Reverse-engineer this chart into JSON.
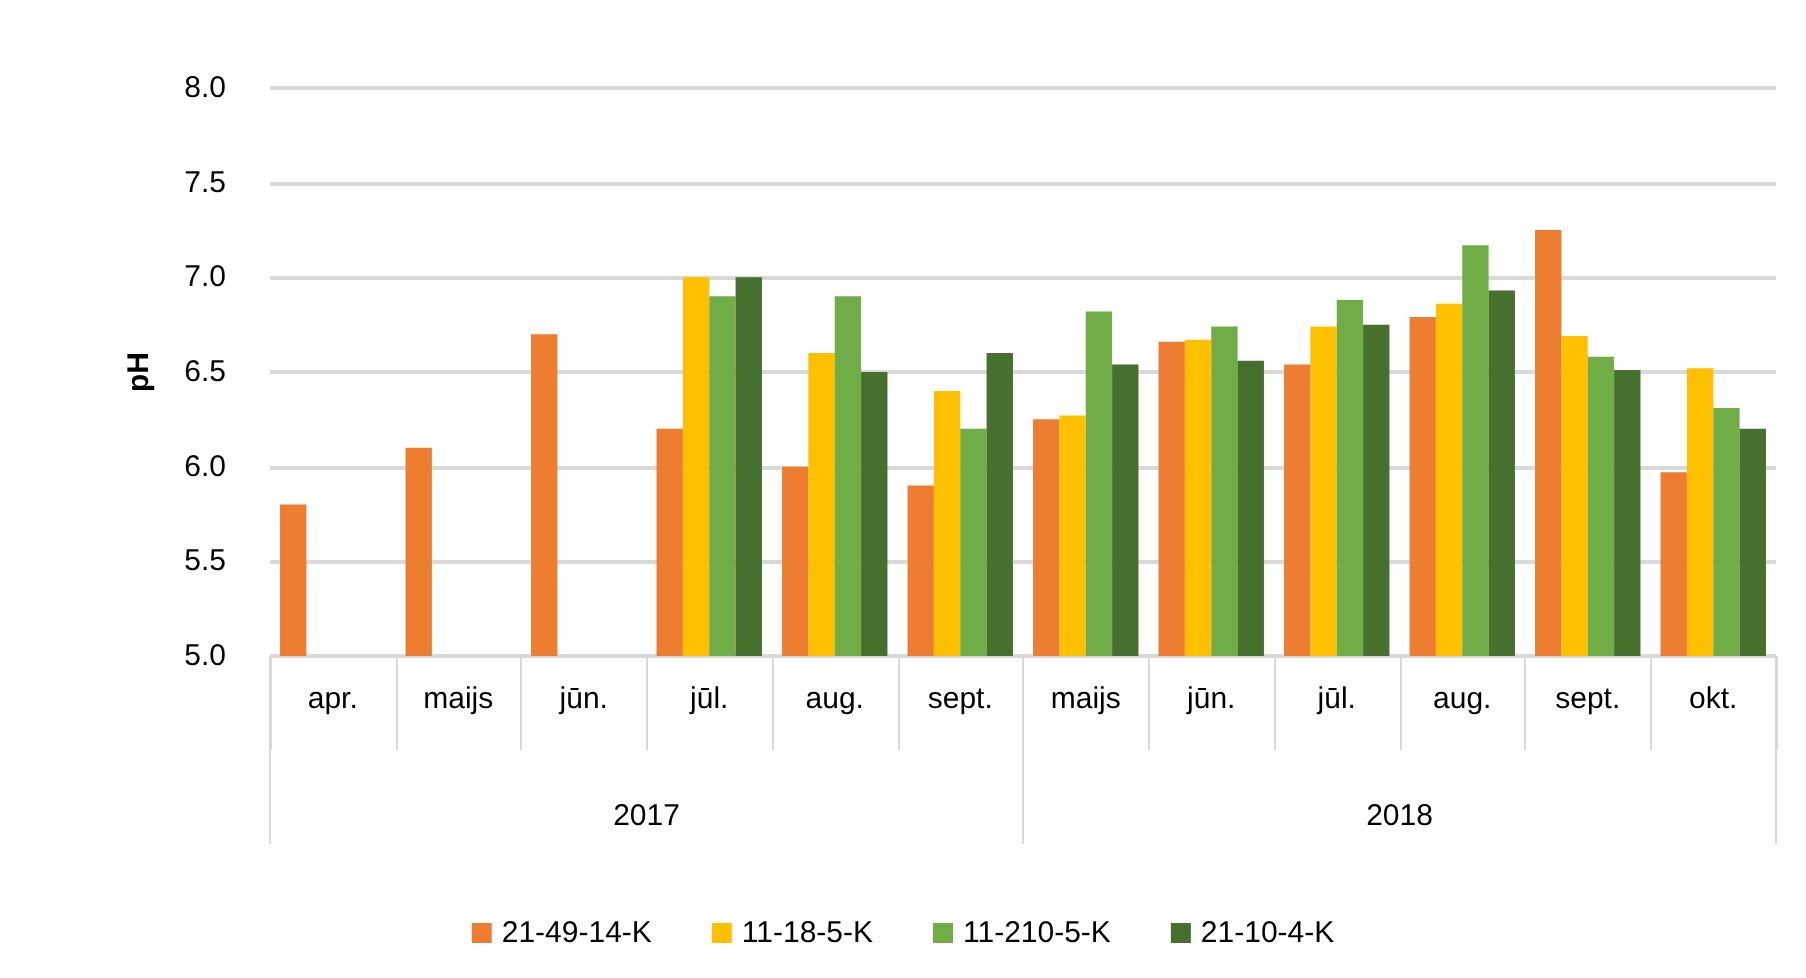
{
  "chart_data": {
    "type": "bar",
    "ylabel": "pH",
    "categories": [
      "apr.",
      "maijs",
      "jūn.",
      "jūl.",
      "aug.",
      "sept.",
      "maijs",
      "jūn.",
      "jūl.",
      "aug.",
      "sept.",
      "okt."
    ],
    "annotations": [
      "2017",
      "2018"
    ],
    "series": [
      {
        "name": "21-49-14-K",
        "color": "#ed7d31",
        "values": [
          5.8,
          6.1,
          6.7,
          6.2,
          6.0,
          5.9,
          6.25,
          6.66,
          6.54,
          6.79,
          7.25,
          5.97
        ]
      },
      {
        "name": "11-18-5-K",
        "color": "#ffc000",
        "values": [
          null,
          null,
          null,
          7.0,
          6.6,
          6.4,
          6.27,
          6.67,
          6.74,
          6.86,
          6.69,
          6.52
        ]
      },
      {
        "name": "11-210-5-K",
        "color": "#70ad47",
        "values": [
          null,
          null,
          null,
          6.9,
          6.9,
          6.2,
          6.82,
          6.74,
          6.88,
          7.17,
          6.58,
          6.31
        ]
      },
      {
        "name": "21-10-4-K",
        "color": "#476f2e",
        "values": [
          null,
          null,
          null,
          7.0,
          6.5,
          6.6,
          6.54,
          6.56,
          6.75,
          6.93,
          6.51,
          6.2
        ]
      }
    ],
    "ylim": [
      5,
      8
    ],
    "yticks": [
      {
        "value": 5,
        "label": "5.0"
      },
      {
        "value": 5.5,
        "label": "5.5"
      },
      {
        "value": 6,
        "label": "6.0"
      },
      {
        "value": 6.5,
        "label": "6.5"
      },
      {
        "value": 7,
        "label": "7.0"
      },
      {
        "value": 7.5,
        "label": "7.5"
      },
      {
        "value": 8,
        "label": "8.0"
      }
    ],
    "grid": "y",
    "legend": "bottom"
  }
}
